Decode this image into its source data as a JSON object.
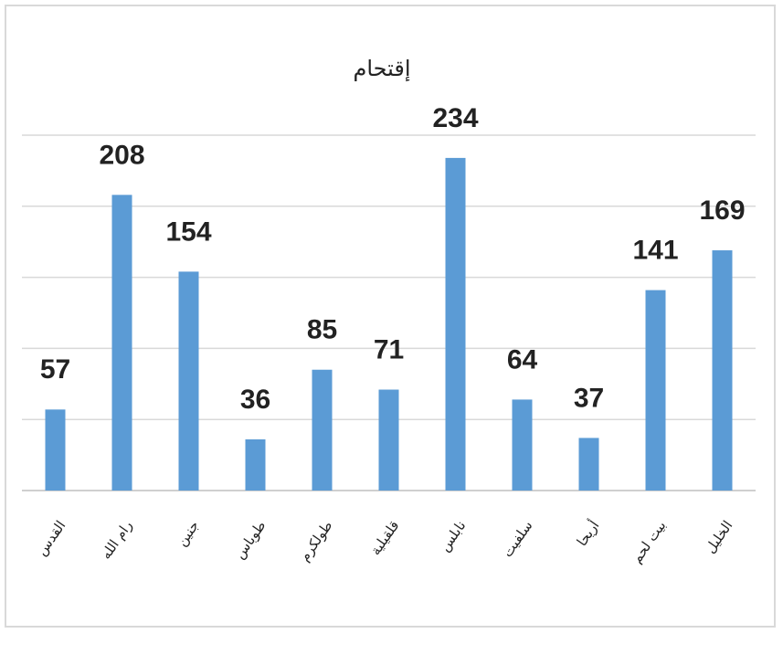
{
  "chart_data": {
    "type": "bar",
    "title": "إقتحام",
    "categories": [
      "القدس",
      "رام الله",
      "جنين",
      "طوباس",
      "طولكرم",
      "قلقيلية",
      "نابلس",
      "سلفيت",
      "أريحا",
      "بيت لحم",
      "الخليل"
    ],
    "values": [
      57,
      208,
      154,
      36,
      85,
      71,
      234,
      64,
      37,
      141,
      169
    ],
    "color": "#5b9bd5",
    "ylim": [
      0,
      250
    ],
    "yticks": [
      0,
      50,
      100,
      150,
      200,
      250
    ],
    "grid": true
  }
}
